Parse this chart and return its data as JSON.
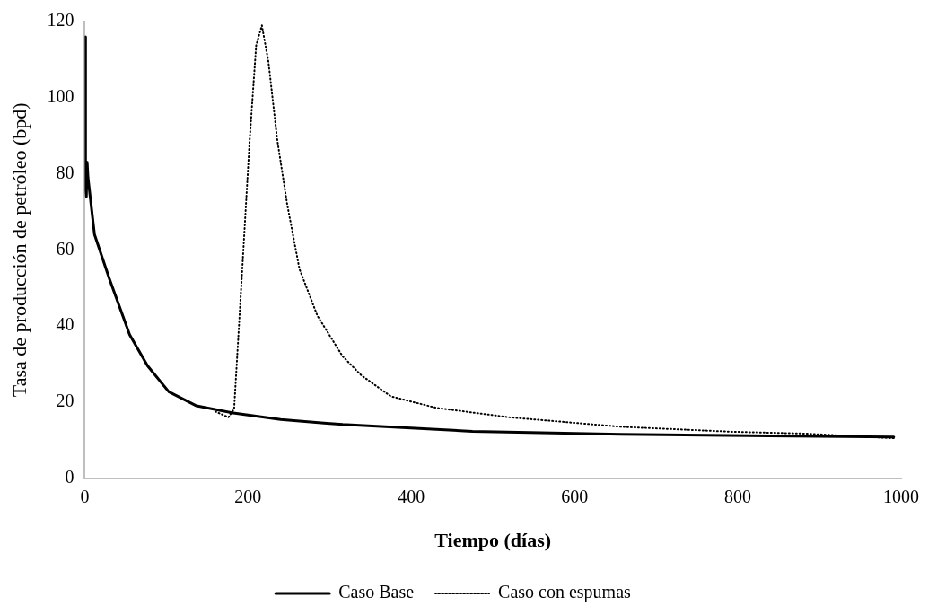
{
  "chart_data": {
    "type": "line",
    "xlabel": "Tiempo (días)",
    "ylabel": "Tasa de producción de petróleo (bpd)",
    "xlim": [
      0,
      1000
    ],
    "xticks": [
      0,
      200,
      400,
      600,
      800,
      1000
    ],
    "ylim": [
      0,
      120
    ],
    "yticks": [
      0,
      20,
      40,
      60,
      80,
      100,
      120
    ],
    "grid": false,
    "legend": "bottom",
    "marker": "none",
    "series": [
      {
        "name": "Caso Base",
        "color": "#000000",
        "line_style": "solid",
        "x": [
          1,
          1,
          2,
          3,
          4,
          12,
          30,
          55,
          77,
          103,
          137,
          180,
          240,
          293,
          316,
          475,
          657,
          839,
          991
        ],
        "values": [
          116,
          76,
          74,
          83,
          79,
          64,
          52.5,
          37.7,
          29.5,
          22.7,
          19,
          17.2,
          15.4,
          14.5,
          14.1,
          12.3,
          11.5,
          11.1,
          10.8
        ]
      },
      {
        "name": "Caso con espumas",
        "color": "#000000",
        "line_style": "dotted",
        "x": [
          160,
          176,
          183,
          193,
          202,
          210,
          217,
          225,
          236,
          248,
          263,
          285,
          316,
          339,
          375,
          430,
          520,
          657,
          793,
          884,
          991
        ],
        "values": [
          17.5,
          16,
          18.2,
          55,
          88.7,
          113.7,
          119,
          109.5,
          88.7,
          72,
          55,
          42.7,
          32,
          27,
          21.5,
          18.5,
          16,
          13.5,
          12.2,
          11.7,
          10.5
        ]
      }
    ]
  }
}
